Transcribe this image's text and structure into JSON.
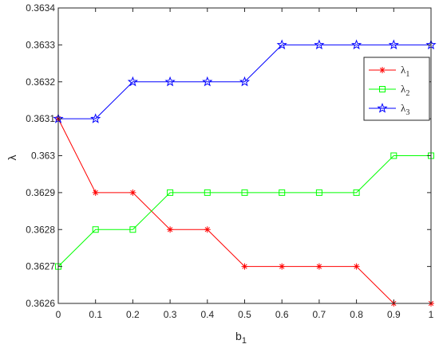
{
  "chart_data": {
    "type": "line",
    "title": "",
    "xlabel": "b",
    "xlabel_sub": "1",
    "ylabel": "λ",
    "xlim": [
      0,
      1
    ],
    "ylim": [
      0.3626,
      0.3634
    ],
    "x_ticks": [
      0,
      0.1,
      0.2,
      0.3,
      0.4,
      0.5,
      0.6,
      0.7,
      0.8,
      0.9,
      1
    ],
    "x_tick_labels": [
      "0",
      "0.1",
      "0.2",
      "0.3",
      "0.4",
      "0.5",
      "0.6",
      "0.7",
      "0.8",
      "0.9",
      "1"
    ],
    "y_ticks": [
      0.3626,
      0.3627,
      0.3628,
      0.3629,
      0.363,
      0.3631,
      0.3632,
      0.3633,
      0.3634
    ],
    "y_tick_labels": [
      "0.3626",
      "0.3627",
      "0.3628",
      "0.3629",
      "0.363",
      "0.3631",
      "0.3632",
      "0.3633",
      "0.3634"
    ],
    "grid": false,
    "legend_position": "top-right",
    "x": [
      0,
      0.1,
      0.2,
      0.3,
      0.4,
      0.5,
      0.6,
      0.7,
      0.8,
      0.9,
      1
    ],
    "series": [
      {
        "name": "λ",
        "name_sub": "1",
        "color": "#ff0000",
        "marker": "asterisk",
        "values": [
          0.3631,
          0.3629,
          0.3629,
          0.3628,
          0.3628,
          0.3627,
          0.3627,
          0.3627,
          0.3627,
          0.3626,
          0.3626
        ]
      },
      {
        "name": "λ",
        "name_sub": "2",
        "color": "#00ff00",
        "marker": "square",
        "values": [
          0.3627,
          0.3628,
          0.3628,
          0.3629,
          0.3629,
          0.3629,
          0.3629,
          0.3629,
          0.3629,
          0.363,
          0.363
        ]
      },
      {
        "name": "λ",
        "name_sub": "3",
        "color": "#0000ff",
        "marker": "star",
        "values": [
          0.3631,
          0.3631,
          0.3632,
          0.3632,
          0.3632,
          0.3632,
          0.3633,
          0.3633,
          0.3633,
          0.3633,
          0.3633
        ]
      }
    ]
  }
}
